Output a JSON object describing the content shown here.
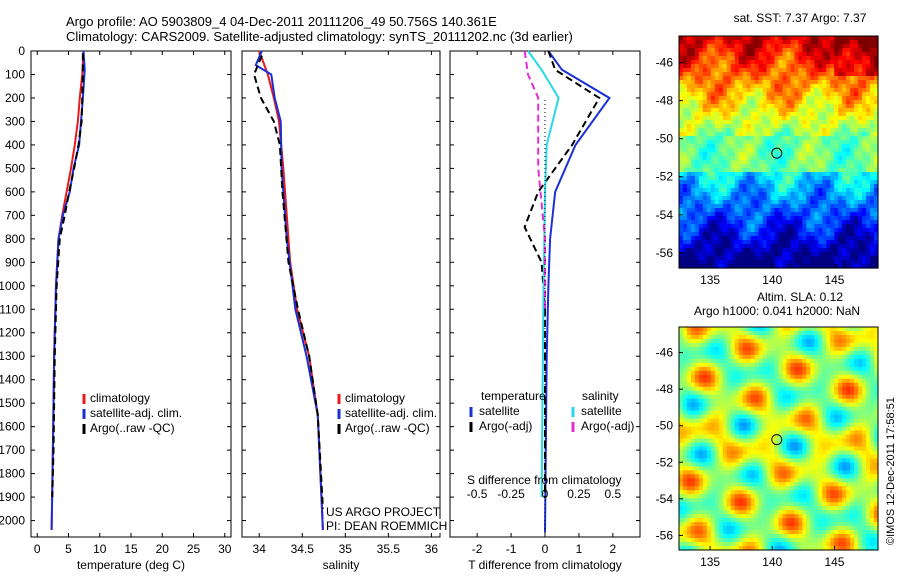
{
  "title": {
    "line1": "Argo profile: AO 5903809_4 04-Dec-2011 20111206_49 50.756S 140.361E",
    "line2": "Climatology: CARS2009. Satellite-adjusted climatology: synTS_20111202.nc (3d earlier)"
  },
  "colors": {
    "climatology": "#e8191a",
    "satellite": "#1a2fd6",
    "argo": "#000000",
    "salinity_satellite": "#27d9e6",
    "salinity_argo": "#e22ed6"
  },
  "legend_tS": {
    "climatology": "climatology",
    "satellite": "satellite-adj. clim.",
    "argo": "Argo(..raw -QC)"
  },
  "legend_diff": {
    "temperature_head": "temperature",
    "salinity_head": "salinity",
    "satellite": "satellite",
    "argo": "Argo(-adj)"
  },
  "credits": {
    "project": "US ARGO PROJECT",
    "pi": "PI: DEAN ROEMMICH"
  },
  "sst_panel": {
    "title": "sat. SST: 7.37  Argo: 7.37",
    "float_position": {
      "lon": 140.36,
      "lat": -50.76
    }
  },
  "sla_panel": {
    "title1": "Altim. SLA: 0.12",
    "title2": "Argo h1000: 0.041  h2000: NaN",
    "float_position": {
      "lon": 140.36,
      "lat": -50.76
    }
  },
  "watermark": "©IMOS 12-Dec-2011 17:58:51",
  "chart_data": [
    {
      "type": "line",
      "panel": "temperature",
      "xlabel": "temperature (deg C)",
      "ylabel": "",
      "xlim": [
        -1,
        31
      ],
      "ylim": [
        2070,
        0
      ],
      "xticks": [
        0,
        5,
        10,
        15,
        20,
        25,
        30
      ],
      "yticks": [
        0,
        100,
        200,
        300,
        400,
        500,
        600,
        700,
        800,
        900,
        1000,
        1100,
        1200,
        1300,
        1400,
        1500,
        1600,
        1700,
        1800,
        1900,
        2000
      ],
      "series": [
        {
          "name": "climatology",
          "style": "solid",
          "color": "#e8191a",
          "x": [
            7.4,
            7.2,
            6.8,
            6.5,
            6.0,
            5.4,
            4.7,
            4.0,
            3.4,
            3.0,
            2.7,
            2.5,
            2.3
          ],
          "y": [
            0,
            100,
            200,
            300,
            400,
            500,
            600,
            700,
            800,
            1000,
            1300,
            1700,
            2040
          ]
        },
        {
          "name": "satellite-adj. clim.",
          "style": "solid",
          "color": "#1a2fd6",
          "x": [
            7.4,
            7.6,
            7.3,
            7.0,
            6.7,
            5.8,
            5.2,
            4.1,
            3.4,
            3.0,
            2.7,
            2.5,
            2.3
          ],
          "y": [
            0,
            80,
            200,
            300,
            400,
            500,
            600,
            700,
            800,
            1000,
            1300,
            1700,
            2040
          ]
        },
        {
          "name": "Argo(..raw -QC)",
          "style": "dashed",
          "color": "#000000",
          "x": [
            7.3,
            7.3,
            7.2,
            7.1,
            6.6,
            5.9,
            5.1,
            4.4,
            3.6,
            3.1,
            2.8,
            2.6,
            2.4
          ],
          "y": [
            10,
            100,
            200,
            300,
            400,
            500,
            600,
            700,
            800,
            1000,
            1300,
            1700,
            1900
          ]
        }
      ]
    },
    {
      "type": "line",
      "panel": "salinity",
      "xlabel": "salinity",
      "ylabel": "",
      "xlim": [
        33.8,
        36.1
      ],
      "ylim": [
        2070,
        0
      ],
      "xticks": [
        34,
        34.5,
        35,
        35.5,
        36
      ],
      "series": [
        {
          "name": "climatology",
          "style": "solid",
          "color": "#e8191a",
          "x": [
            34.0,
            34.1,
            34.17,
            34.23,
            34.28,
            34.32,
            34.36,
            34.44,
            34.58,
            34.68,
            34.74
          ],
          "y": [
            0,
            100,
            200,
            300,
            500,
            700,
            900,
            1100,
            1300,
            1550,
            2040
          ]
        },
        {
          "name": "satellite-adj. clim.",
          "style": "solid",
          "color": "#1a2fd6",
          "x": [
            34.03,
            33.96,
            34.14,
            34.18,
            34.25,
            34.26,
            34.32,
            34.42,
            34.55,
            34.68,
            34.74
          ],
          "y": [
            0,
            60,
            100,
            200,
            300,
            500,
            800,
            1100,
            1300,
            1550,
            2040
          ]
        },
        {
          "name": "Argo(..raw -QC)",
          "style": "dashed",
          "color": "#000000",
          "x": [
            34.03,
            33.94,
            34.02,
            34.17,
            34.24,
            34.27,
            34.34,
            34.45,
            34.58,
            34.68,
            34.74
          ],
          "y": [
            20,
            100,
            200,
            300,
            400,
            600,
            900,
            1100,
            1300,
            1550,
            1950
          ]
        }
      ]
    },
    {
      "type": "line",
      "panel": "difference",
      "xlabel": "T difference from climatology",
      "x2label": "S difference from climatology",
      "xlim": [
        -2.8,
        2.8
      ],
      "ylim": [
        2070,
        0
      ],
      "xticks": [
        -2,
        -1,
        0,
        1,
        2
      ],
      "x2ticks": [
        -0.5,
        -0.25,
        0,
        0.25,
        0.5
      ],
      "series": [
        {
          "name": "temperature satellite",
          "style": "solid",
          "color": "#1a2fd6",
          "x": [
            0.1,
            0.5,
            1.9,
            0.9,
            0.3,
            0.15,
            0.1,
            0.05,
            0.0
          ],
          "y": [
            0,
            80,
            200,
            400,
            600,
            800,
            1000,
            1300,
            2050
          ]
        },
        {
          "name": "temperature Argo(-adj)",
          "style": "dashed",
          "color": "#000000",
          "x": [
            0.1,
            0.3,
            1.6,
            0.8,
            -0.2,
            -0.6,
            -0.1,
            0.0,
            0.0
          ],
          "y": [
            0,
            80,
            200,
            400,
            600,
            750,
            900,
            1100,
            1900
          ]
        },
        {
          "name": "salinity satellite",
          "style": "solid",
          "color": "#27d9e6",
          "x": [
            -0.5,
            -0.1,
            0.4,
            0.05,
            0.0,
            -0.05,
            -0.1
          ],
          "y": [
            0,
            80,
            200,
            400,
            600,
            1100,
            1900
          ]
        },
        {
          "name": "salinity Argo(-adj)",
          "style": "dashed",
          "color": "#e22ed6",
          "x": [
            -0.6,
            -0.5,
            -0.2,
            -0.2,
            0.0,
            0.0
          ],
          "y": [
            0,
            100,
            200,
            500,
            800,
            1100
          ]
        }
      ]
    }
  ],
  "maps": {
    "sst": {
      "xlim": [
        132.5,
        148.5
      ],
      "ylim": [
        -56.8,
        -44.6
      ],
      "xticks": [
        135,
        140,
        145
      ],
      "yticks": [
        -46,
        -48,
        -50,
        -52,
        -54,
        -56
      ]
    },
    "sla": {
      "xlim": [
        132.5,
        148.5
      ],
      "ylim": [
        -56.8,
        -44.6
      ],
      "xticks": [
        135,
        140,
        145
      ],
      "yticks": [
        -46,
        -48,
        -50,
        -52,
        -54,
        -56
      ]
    }
  }
}
